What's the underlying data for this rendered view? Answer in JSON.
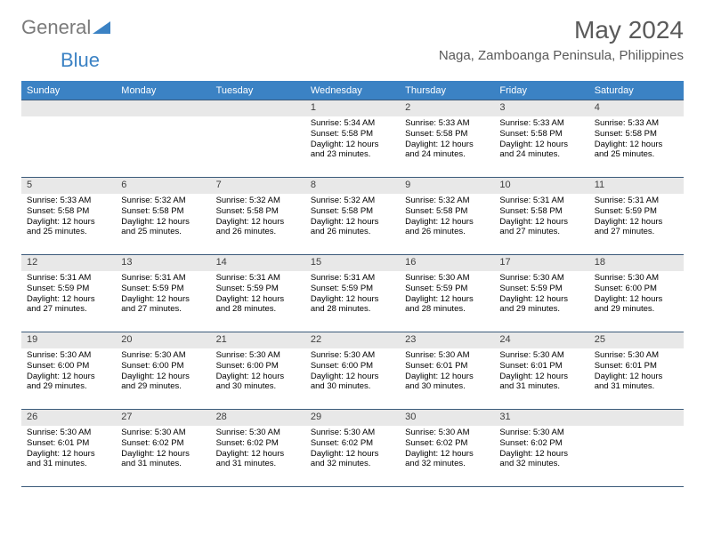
{
  "logo": {
    "part1": "General",
    "part2": "Blue"
  },
  "title": "May 2024",
  "location": "Naga, Zamboanga Peninsula, Philippines",
  "colors": {
    "header_bg": "#3b82c4",
    "header_text": "#ffffff",
    "daynum_bg": "#e8e8e8",
    "rule": "#3b5a7a",
    "logo_gray": "#7a7a7a",
    "logo_blue": "#3b82c4",
    "title_gray": "#5a5a5a"
  },
  "day_names": [
    "Sunday",
    "Monday",
    "Tuesday",
    "Wednesday",
    "Thursday",
    "Friday",
    "Saturday"
  ],
  "weeks": [
    [
      {
        "day": "",
        "sunrise": "",
        "sunset": "",
        "daylight": ""
      },
      {
        "day": "",
        "sunrise": "",
        "sunset": "",
        "daylight": ""
      },
      {
        "day": "",
        "sunrise": "",
        "sunset": "",
        "daylight": ""
      },
      {
        "day": "1",
        "sunrise": "Sunrise: 5:34 AM",
        "sunset": "Sunset: 5:58 PM",
        "daylight": "Daylight: 12 hours and 23 minutes."
      },
      {
        "day": "2",
        "sunrise": "Sunrise: 5:33 AM",
        "sunset": "Sunset: 5:58 PM",
        "daylight": "Daylight: 12 hours and 24 minutes."
      },
      {
        "day": "3",
        "sunrise": "Sunrise: 5:33 AM",
        "sunset": "Sunset: 5:58 PM",
        "daylight": "Daylight: 12 hours and 24 minutes."
      },
      {
        "day": "4",
        "sunrise": "Sunrise: 5:33 AM",
        "sunset": "Sunset: 5:58 PM",
        "daylight": "Daylight: 12 hours and 25 minutes."
      }
    ],
    [
      {
        "day": "5",
        "sunrise": "Sunrise: 5:33 AM",
        "sunset": "Sunset: 5:58 PM",
        "daylight": "Daylight: 12 hours and 25 minutes."
      },
      {
        "day": "6",
        "sunrise": "Sunrise: 5:32 AM",
        "sunset": "Sunset: 5:58 PM",
        "daylight": "Daylight: 12 hours and 25 minutes."
      },
      {
        "day": "7",
        "sunrise": "Sunrise: 5:32 AM",
        "sunset": "Sunset: 5:58 PM",
        "daylight": "Daylight: 12 hours and 26 minutes."
      },
      {
        "day": "8",
        "sunrise": "Sunrise: 5:32 AM",
        "sunset": "Sunset: 5:58 PM",
        "daylight": "Daylight: 12 hours and 26 minutes."
      },
      {
        "day": "9",
        "sunrise": "Sunrise: 5:32 AM",
        "sunset": "Sunset: 5:58 PM",
        "daylight": "Daylight: 12 hours and 26 minutes."
      },
      {
        "day": "10",
        "sunrise": "Sunrise: 5:31 AM",
        "sunset": "Sunset: 5:58 PM",
        "daylight": "Daylight: 12 hours and 27 minutes."
      },
      {
        "day": "11",
        "sunrise": "Sunrise: 5:31 AM",
        "sunset": "Sunset: 5:59 PM",
        "daylight": "Daylight: 12 hours and 27 minutes."
      }
    ],
    [
      {
        "day": "12",
        "sunrise": "Sunrise: 5:31 AM",
        "sunset": "Sunset: 5:59 PM",
        "daylight": "Daylight: 12 hours and 27 minutes."
      },
      {
        "day": "13",
        "sunrise": "Sunrise: 5:31 AM",
        "sunset": "Sunset: 5:59 PM",
        "daylight": "Daylight: 12 hours and 27 minutes."
      },
      {
        "day": "14",
        "sunrise": "Sunrise: 5:31 AM",
        "sunset": "Sunset: 5:59 PM",
        "daylight": "Daylight: 12 hours and 28 minutes."
      },
      {
        "day": "15",
        "sunrise": "Sunrise: 5:31 AM",
        "sunset": "Sunset: 5:59 PM",
        "daylight": "Daylight: 12 hours and 28 minutes."
      },
      {
        "day": "16",
        "sunrise": "Sunrise: 5:30 AM",
        "sunset": "Sunset: 5:59 PM",
        "daylight": "Daylight: 12 hours and 28 minutes."
      },
      {
        "day": "17",
        "sunrise": "Sunrise: 5:30 AM",
        "sunset": "Sunset: 5:59 PM",
        "daylight": "Daylight: 12 hours and 29 minutes."
      },
      {
        "day": "18",
        "sunrise": "Sunrise: 5:30 AM",
        "sunset": "Sunset: 6:00 PM",
        "daylight": "Daylight: 12 hours and 29 minutes."
      }
    ],
    [
      {
        "day": "19",
        "sunrise": "Sunrise: 5:30 AM",
        "sunset": "Sunset: 6:00 PM",
        "daylight": "Daylight: 12 hours and 29 minutes."
      },
      {
        "day": "20",
        "sunrise": "Sunrise: 5:30 AM",
        "sunset": "Sunset: 6:00 PM",
        "daylight": "Daylight: 12 hours and 29 minutes."
      },
      {
        "day": "21",
        "sunrise": "Sunrise: 5:30 AM",
        "sunset": "Sunset: 6:00 PM",
        "daylight": "Daylight: 12 hours and 30 minutes."
      },
      {
        "day": "22",
        "sunrise": "Sunrise: 5:30 AM",
        "sunset": "Sunset: 6:00 PM",
        "daylight": "Daylight: 12 hours and 30 minutes."
      },
      {
        "day": "23",
        "sunrise": "Sunrise: 5:30 AM",
        "sunset": "Sunset: 6:01 PM",
        "daylight": "Daylight: 12 hours and 30 minutes."
      },
      {
        "day": "24",
        "sunrise": "Sunrise: 5:30 AM",
        "sunset": "Sunset: 6:01 PM",
        "daylight": "Daylight: 12 hours and 31 minutes."
      },
      {
        "day": "25",
        "sunrise": "Sunrise: 5:30 AM",
        "sunset": "Sunset: 6:01 PM",
        "daylight": "Daylight: 12 hours and 31 minutes."
      }
    ],
    [
      {
        "day": "26",
        "sunrise": "Sunrise: 5:30 AM",
        "sunset": "Sunset: 6:01 PM",
        "daylight": "Daylight: 12 hours and 31 minutes."
      },
      {
        "day": "27",
        "sunrise": "Sunrise: 5:30 AM",
        "sunset": "Sunset: 6:02 PM",
        "daylight": "Daylight: 12 hours and 31 minutes."
      },
      {
        "day": "28",
        "sunrise": "Sunrise: 5:30 AM",
        "sunset": "Sunset: 6:02 PM",
        "daylight": "Daylight: 12 hours and 31 minutes."
      },
      {
        "day": "29",
        "sunrise": "Sunrise: 5:30 AM",
        "sunset": "Sunset: 6:02 PM",
        "daylight": "Daylight: 12 hours and 32 minutes."
      },
      {
        "day": "30",
        "sunrise": "Sunrise: 5:30 AM",
        "sunset": "Sunset: 6:02 PM",
        "daylight": "Daylight: 12 hours and 32 minutes."
      },
      {
        "day": "31",
        "sunrise": "Sunrise: 5:30 AM",
        "sunset": "Sunset: 6:02 PM",
        "daylight": "Daylight: 12 hours and 32 minutes."
      },
      {
        "day": "",
        "sunrise": "",
        "sunset": "",
        "daylight": ""
      }
    ]
  ]
}
